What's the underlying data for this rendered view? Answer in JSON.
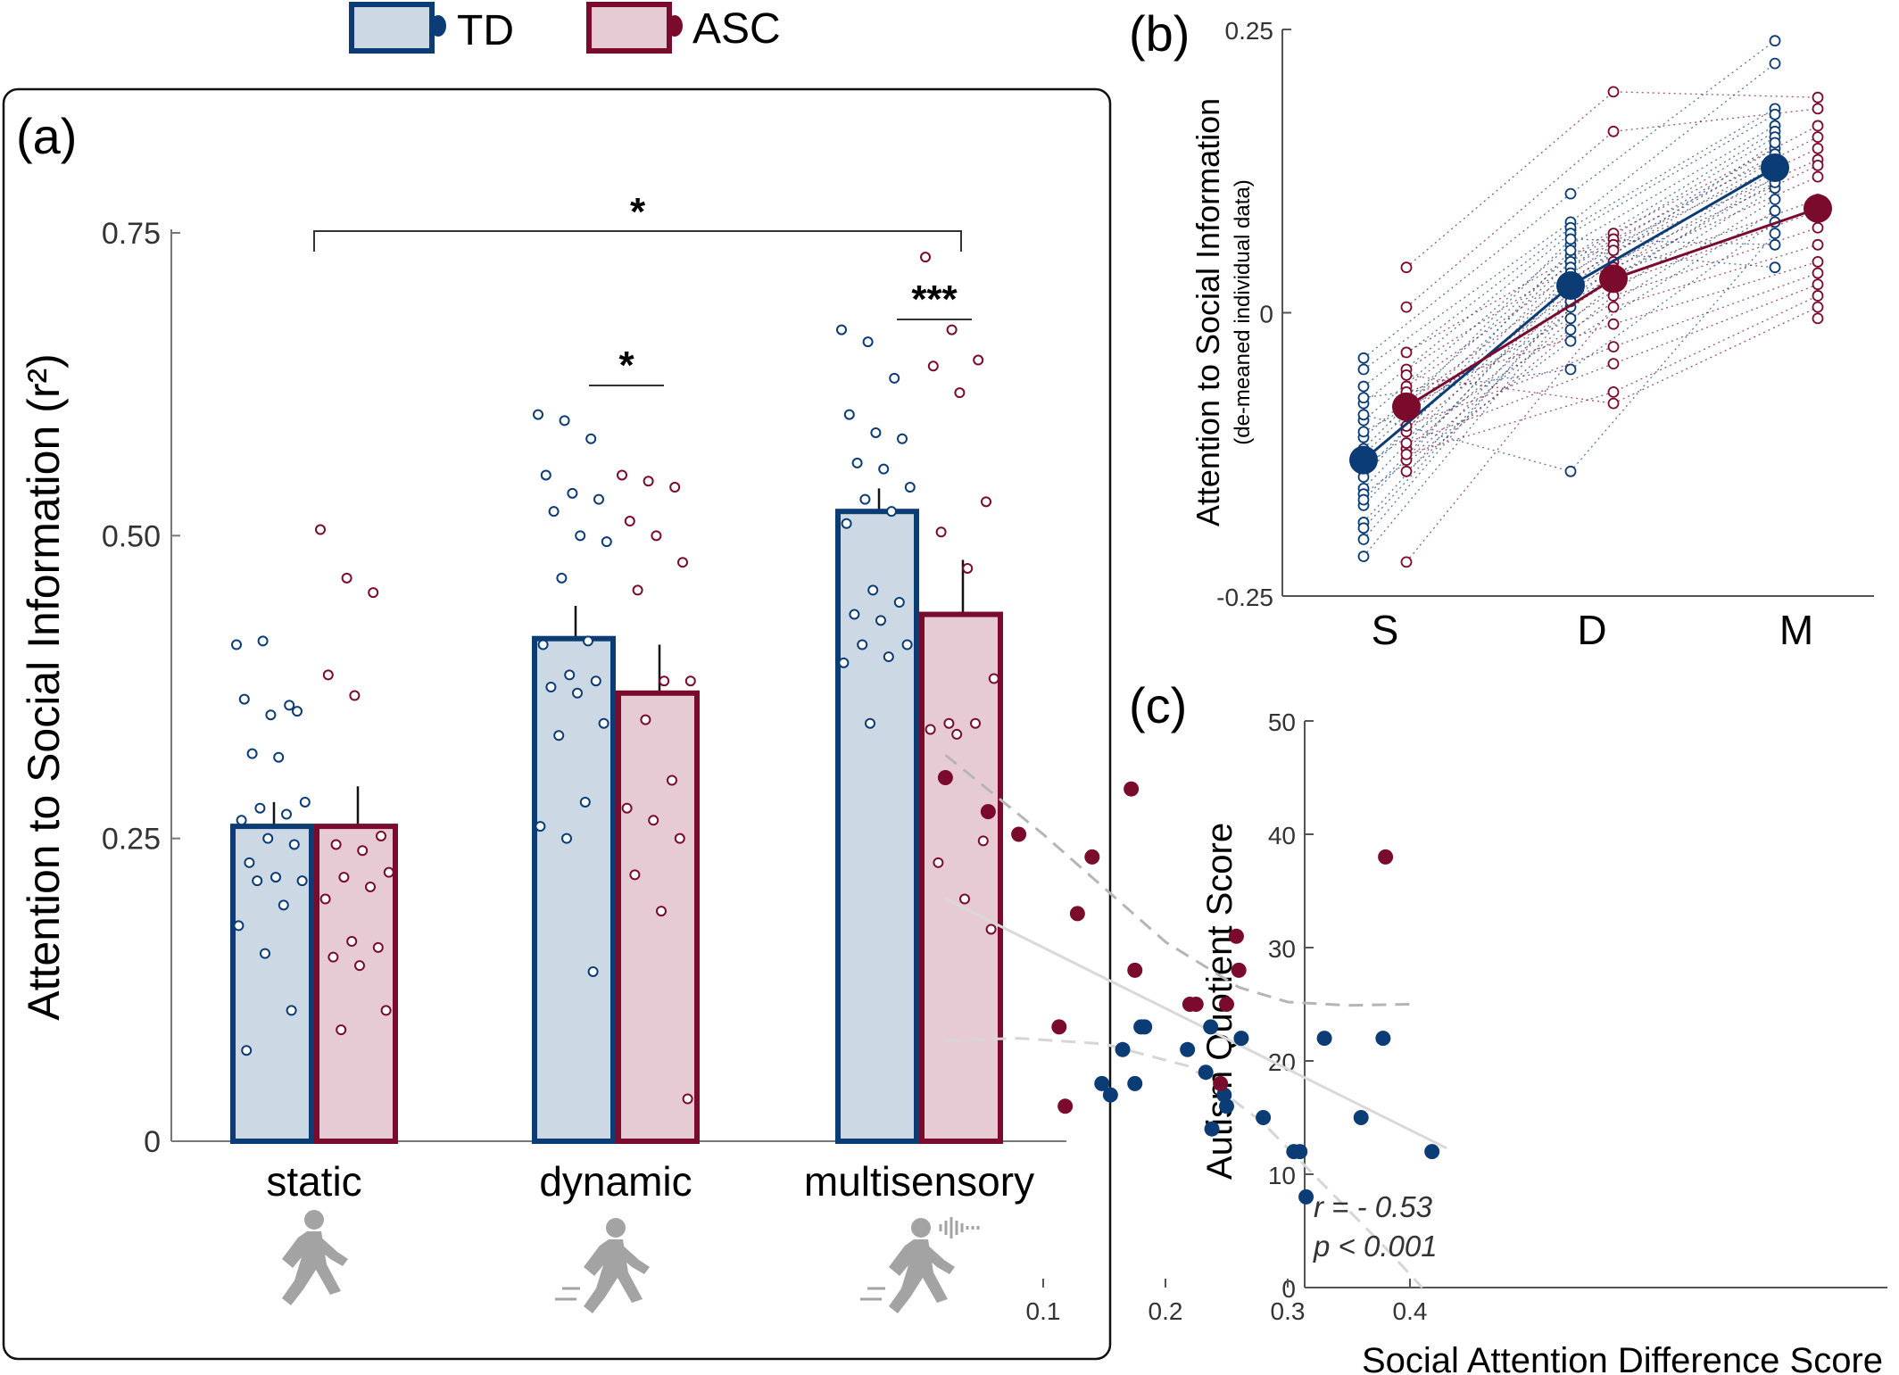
{
  "colors": {
    "td": "#0b3c75",
    "asc": "#7a0b2c",
    "td_fill": "#ccd9e4",
    "asc_fill": "#e7cbd4",
    "grey_icon": "#a3a3a3"
  },
  "legend": {
    "td_label": "TD",
    "asc_label": "ASC"
  },
  "chart_data": [
    {
      "panel": "(a)",
      "type": "bar",
      "ylabel": "Attention to Social Information (r²)",
      "ylim": [
        0,
        0.75
      ],
      "yticks": [
        "0",
        "0.25",
        "0.50",
        "0.75"
      ],
      "yticks_values": [
        0,
        0.25,
        0.5,
        0.75
      ],
      "categories": [
        "static",
        "dynamic",
        "multisensory"
      ],
      "category_icons": [
        "walking-person-icon",
        "moving-person-icon",
        "moving-person-with-sound-icon"
      ],
      "series": [
        {
          "name": "TD",
          "values": [
            0.26,
            0.415,
            0.52
          ],
          "errors": [
            0.02,
            0.027,
            0.019
          ],
          "points": [
            [
              0.41,
              0.413,
              0.36,
              0.365,
              0.352,
              0.355,
              0.32,
              0.317,
              0.28,
              0.275,
              0.27,
              0.265,
              0.25,
              0.245,
              0.23,
              0.218,
              0.215,
              0.215,
              0.195,
              0.178,
              0.155,
              0.108,
              0.075
            ],
            [
              0.6,
              0.595,
              0.58,
              0.55,
              0.535,
              0.53,
              0.52,
              0.5,
              0.495,
              0.465,
              0.413,
              0.41,
              0.385,
              0.38,
              0.375,
              0.37,
              0.345,
              0.335,
              0.28,
              0.26,
              0.25,
              0.14
            ],
            [
              0.67,
              0.66,
              0.63,
              0.6,
              0.585,
              0.58,
              0.56,
              0.555,
              0.54,
              0.53,
              0.52,
              0.51,
              0.455,
              0.445,
              0.435,
              0.43,
              0.41,
              0.41,
              0.4,
              0.395,
              0.345
            ]
          ]
        },
        {
          "name": "ASC",
          "values": [
            0.26,
            0.37,
            0.435
          ],
          "errors": [
            0.033,
            0.04,
            0.045
          ],
          "points": [
            [
              0.505,
              0.465,
              0.453,
              0.385,
              0.368,
              0.252,
              0.245,
              0.24,
              0.222,
              0.218,
              0.21,
              0.2,
              0.165,
              0.16,
              0.152,
              0.145,
              0.108,
              0.092
            ],
            [
              0.55,
              0.545,
              0.54,
              0.512,
              0.5,
              0.478,
              0.455,
              0.38,
              0.38,
              0.348,
              0.298,
              0.275,
              0.265,
              0.25,
              0.22,
              0.19,
              0.035
            ],
            [
              0.73,
              0.67,
              0.645,
              0.64,
              0.618,
              0.528,
              0.503,
              0.473,
              0.382,
              0.345,
              0.345,
              0.34,
              0.336,
              0.248,
              0.23,
              0.2,
              0.175
            ]
          ]
        }
      ],
      "significance": [
        {
          "from": "static",
          "to": "multisensory",
          "label": "*"
        },
        {
          "category": "dynamic",
          "label": "*"
        },
        {
          "category": "multisensory",
          "label": "***"
        }
      ]
    },
    {
      "panel": "(b)",
      "type": "line",
      "ylabel": "Attention to Social Information",
      "ylabel_sub": "(de-meaned individual data)",
      "categories": [
        "S",
        "D",
        "M"
      ],
      "ylim": [
        -0.25,
        0.25
      ],
      "yticks": [
        "-0.25",
        "0",
        "0.25"
      ],
      "yticks_values": [
        -0.25,
        0,
        0.25
      ],
      "series": [
        {
          "name": "TD",
          "values": [
            -0.13,
            0.024,
            0.128
          ],
          "points": [
            [
              -0.04,
              -0.05,
              -0.065,
              -0.08,
              -0.095,
              -0.11,
              -0.125,
              -0.14,
              -0.155,
              -0.17,
              -0.185,
              -0.2,
              -0.215,
              -0.105,
              -0.135,
              -0.16,
              -0.075,
              -0.09,
              -0.12,
              -0.145,
              -0.165,
              -0.19
            ],
            [
              0.105,
              0.08,
              0.075,
              0.07,
              0.06,
              0.05,
              0.045,
              0.04,
              0.035,
              0.03,
              0.02,
              0.015,
              0.005,
              -0.005,
              -0.015,
              -0.025,
              -0.05,
              -0.14,
              0.065,
              0.055,
              0.025,
              0.01
            ],
            [
              0.24,
              0.22,
              0.18,
              0.175,
              0.165,
              0.16,
              0.155,
              0.145,
              0.14,
              0.135,
              0.13,
              0.125,
              0.12,
              0.11,
              0.1,
              0.09,
              0.08,
              0.07,
              0.06,
              0.04,
              0.15,
              0.115
            ]
          ]
        },
        {
          "name": "ASC",
          "values": [
            -0.083,
            0.03,
            0.092
          ],
          "points": [
            [
              0.04,
              0.005,
              -0.035,
              -0.05,
              -0.065,
              -0.08,
              -0.09,
              -0.105,
              -0.12,
              -0.13,
              -0.14,
              -0.22,
              -0.07,
              -0.1,
              -0.115,
              -0.125,
              -0.055
            ],
            [
              0.195,
              0.16,
              0.07,
              0.065,
              0.06,
              0.055,
              0.045,
              0.04,
              0.035,
              0.025,
              0.015,
              0.005,
              -0.01,
              -0.03,
              -0.045,
              -0.07,
              -0.08
            ],
            [
              0.19,
              0.18,
              0.165,
              0.155,
              0.145,
              0.135,
              0.13,
              0.12,
              0.1,
              0.09,
              0.075,
              0.06,
              0.045,
              0.035,
              0.025,
              0.015,
              0.005,
              -0.005
            ]
          ]
        }
      ]
    },
    {
      "panel": "(c)",
      "type": "scatter",
      "xlabel": "Social Attention Difference Score",
      "ylabel": "Autism Quotient Score",
      "xlim": [
        0.0,
        0.5
      ],
      "ylim": [
        0,
        50
      ],
      "xticks": [
        "0.1",
        "0.2",
        "0.3",
        "0.4"
      ],
      "xticks_values": [
        0.1,
        0.2,
        0.3,
        0.4
      ],
      "yticks": [
        "0",
        "10",
        "20",
        "30",
        "40",
        "50"
      ],
      "yticks_values": [
        0,
        10,
        20,
        30,
        40,
        50
      ],
      "annotation": {
        "r": "r = - 0.53",
        "p": "p < 0.001"
      },
      "fit_line": {
        "x": [
          0.02,
          0.43
        ],
        "y": [
          34.3,
          12.3
        ]
      },
      "ci_upper": {
        "x": [
          0.02,
          0.1,
          0.2,
          0.26,
          0.3,
          0.35,
          0.4
        ],
        "y": [
          47,
          40,
          30.5,
          26.5,
          25.2,
          24.9,
          25
        ]
      },
      "ci_lower": {
        "x": [
          0.02,
          0.08,
          0.15,
          0.22,
          0.28,
          0.33,
          0.38,
          0.41
        ],
        "y": [
          21.8,
          22,
          21.5,
          19.5,
          14.5,
          9,
          3.5,
          0
        ]
      },
      "series": [
        {
          "name": "TD",
          "x": [
            0.148,
            0.155,
            0.165,
            0.175,
            0.18,
            0.183,
            0.218,
            0.233,
            0.238,
            0.237,
            0.248,
            0.25,
            0.262,
            0.28,
            0.305,
            0.31,
            0.315,
            0.33,
            0.36,
            0.378,
            0.418
          ],
          "y": [
            18,
            17,
            21,
            18,
            23,
            23,
            21,
            19,
            14,
            23,
            17,
            16,
            22,
            15,
            12,
            12,
            8,
            22,
            15,
            22,
            12
          ]
        },
        {
          "name": "ASC",
          "x": [
            0.02,
            0.055,
            0.08,
            0.113,
            0.118,
            0.14,
            0.128,
            0.172,
            0.175,
            0.22,
            0.225,
            0.25,
            0.258,
            0.26,
            0.245,
            0.38
          ],
          "y": [
            45,
            42,
            40,
            23,
            16,
            38,
            33,
            44,
            28,
            25,
            25,
            25,
            31,
            28,
            18,
            38
          ]
        }
      ]
    }
  ]
}
